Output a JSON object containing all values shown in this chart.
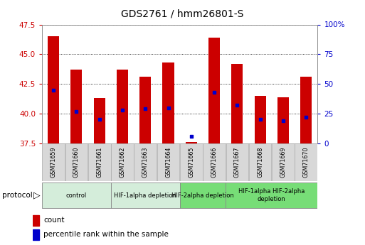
{
  "title": "GDS2761 / hmm26801-S",
  "samples": [
    "GSM71659",
    "GSM71660",
    "GSM71661",
    "GSM71662",
    "GSM71663",
    "GSM71664",
    "GSM71665",
    "GSM71666",
    "GSM71667",
    "GSM71668",
    "GSM71669",
    "GSM71670"
  ],
  "counts": [
    46.5,
    43.7,
    41.3,
    43.7,
    43.1,
    44.3,
    37.6,
    46.4,
    44.2,
    41.5,
    41.4,
    43.1
  ],
  "percentile_values": [
    42.0,
    40.2,
    39.5,
    40.3,
    40.4,
    40.5,
    38.1,
    41.8,
    40.7,
    39.5,
    39.4,
    39.7
  ],
  "ylim_left": [
    37.5,
    47.5
  ],
  "ylim_right": [
    0,
    100
  ],
  "yticks_left": [
    37.5,
    40.0,
    42.5,
    45.0,
    47.5
  ],
  "yticks_right": [
    0,
    25,
    50,
    75,
    100
  ],
  "bar_color": "#cc0000",
  "dot_color": "#0000cc",
  "bar_width": 0.5,
  "protocol_groups": [
    {
      "label": "control",
      "start": 0,
      "end": 2,
      "color": "#d4edda"
    },
    {
      "label": "HIF-1alpha depletion",
      "start": 3,
      "end": 5,
      "color": "#d4edda"
    },
    {
      "label": "HIF-2alpha depletion",
      "start": 6,
      "end": 7,
      "color": "#77dd77"
    },
    {
      "label": "HIF-1alpha HIF-2alpha\ndepletion",
      "start": 8,
      "end": 11,
      "color": "#77dd77"
    }
  ],
  "protocol_text": "protocol",
  "legend_count_label": "count",
  "legend_pct_label": "percentile rank within the sample",
  "tick_label_color_left": "#cc0000",
  "tick_label_color_right": "#0000cc"
}
